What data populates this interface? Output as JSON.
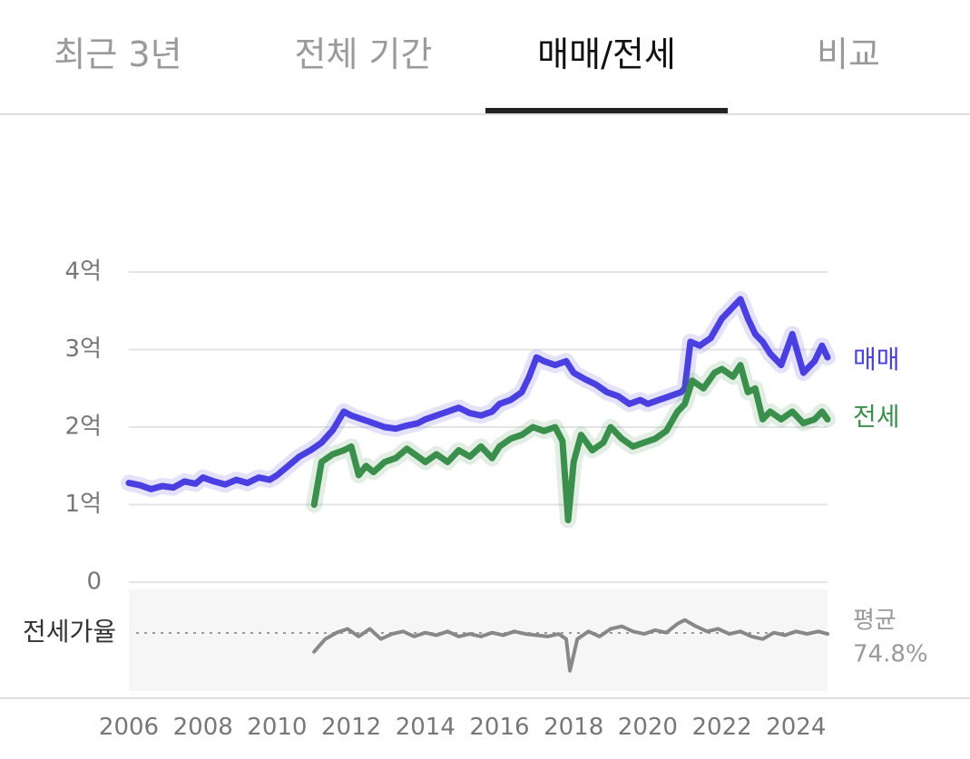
{
  "tabs": [
    {
      "label": "최근 3년",
      "active": false
    },
    {
      "label": "전체 기간",
      "active": false
    },
    {
      "label": "매매/전세",
      "active": true
    },
    {
      "label": "비교",
      "active": false
    }
  ],
  "colors": {
    "sale": "#4a3fe0",
    "jeonse": "#3b8f4c",
    "ratio": "#888888",
    "grid": "#e4e4e4",
    "axis_text": "#777777",
    "ratio_band": "#f6f6f6"
  },
  "chart_data": {
    "type": "line",
    "title": "",
    "xlabel": "",
    "ylabel": "",
    "y_unit": "억",
    "ylim": [
      0,
      4
    ],
    "y_ticks": [
      {
        "value": 0,
        "label": "0"
      },
      {
        "value": 1,
        "label": "1억"
      },
      {
        "value": 2,
        "label": "2억"
      },
      {
        "value": 3,
        "label": "3억"
      },
      {
        "value": 4,
        "label": "4억"
      }
    ],
    "x_range": [
      2006,
      2024.85
    ],
    "x_ticks": [
      2006,
      2008,
      2010,
      2012,
      2014,
      2016,
      2018,
      2020,
      2022,
      2024
    ],
    "grid": true,
    "legend": "right, inline labels at line ends",
    "series": [
      {
        "name": "매매",
        "points": [
          [
            2006,
            1.28
          ],
          [
            2006.3,
            1.25
          ],
          [
            2006.6,
            1.2
          ],
          [
            2006.9,
            1.24
          ],
          [
            2007.2,
            1.22
          ],
          [
            2007.5,
            1.3
          ],
          [
            2007.8,
            1.27
          ],
          [
            2008,
            1.35
          ],
          [
            2008.3,
            1.3
          ],
          [
            2008.6,
            1.26
          ],
          [
            2008.9,
            1.32
          ],
          [
            2009.2,
            1.28
          ],
          [
            2009.5,
            1.35
          ],
          [
            2009.8,
            1.32
          ],
          [
            2010,
            1.38
          ],
          [
            2010.3,
            1.5
          ],
          [
            2010.6,
            1.62
          ],
          [
            2010.9,
            1.7
          ],
          [
            2011.2,
            1.8
          ],
          [
            2011.5,
            1.96
          ],
          [
            2011.8,
            2.2
          ],
          [
            2012,
            2.15
          ],
          [
            2012.3,
            2.1
          ],
          [
            2012.6,
            2.05
          ],
          [
            2012.9,
            2.0
          ],
          [
            2013.2,
            1.98
          ],
          [
            2013.5,
            2.02
          ],
          [
            2013.8,
            2.05
          ],
          [
            2014,
            2.1
          ],
          [
            2014.3,
            2.15
          ],
          [
            2014.6,
            2.2
          ],
          [
            2014.9,
            2.25
          ],
          [
            2015.2,
            2.18
          ],
          [
            2015.5,
            2.15
          ],
          [
            2015.8,
            2.2
          ],
          [
            2016,
            2.3
          ],
          [
            2016.3,
            2.35
          ],
          [
            2016.6,
            2.45
          ],
          [
            2016.8,
            2.65
          ],
          [
            2017,
            2.9
          ],
          [
            2017.2,
            2.85
          ],
          [
            2017.5,
            2.8
          ],
          [
            2017.8,
            2.85
          ],
          [
            2018,
            2.7
          ],
          [
            2018.3,
            2.62
          ],
          [
            2018.6,
            2.55
          ],
          [
            2018.9,
            2.45
          ],
          [
            2019.2,
            2.4
          ],
          [
            2019.5,
            2.3
          ],
          [
            2019.8,
            2.35
          ],
          [
            2020,
            2.3
          ],
          [
            2020.3,
            2.35
          ],
          [
            2020.6,
            2.4
          ],
          [
            2020.9,
            2.45
          ],
          [
            2021,
            2.5
          ],
          [
            2021.15,
            3.1
          ],
          [
            2021.4,
            3.05
          ],
          [
            2021.7,
            3.15
          ],
          [
            2022,
            3.4
          ],
          [
            2022.3,
            3.55
          ],
          [
            2022.5,
            3.65
          ],
          [
            2022.7,
            3.4
          ],
          [
            2022.9,
            3.2
          ],
          [
            2023.1,
            3.1
          ],
          [
            2023.3,
            2.95
          ],
          [
            2023.6,
            2.8
          ],
          [
            2023.9,
            3.2
          ],
          [
            2024.2,
            2.7
          ],
          [
            2024.5,
            2.85
          ],
          [
            2024.7,
            3.05
          ],
          [
            2024.85,
            2.9
          ]
        ]
      },
      {
        "name": "전세",
        "points": [
          [
            2011,
            1.0
          ],
          [
            2011.2,
            1.55
          ],
          [
            2011.5,
            1.65
          ],
          [
            2011.8,
            1.7
          ],
          [
            2012,
            1.75
          ],
          [
            2012.2,
            1.38
          ],
          [
            2012.4,
            1.5
          ],
          [
            2012.6,
            1.42
          ],
          [
            2012.9,
            1.55
          ],
          [
            2013.2,
            1.6
          ],
          [
            2013.5,
            1.72
          ],
          [
            2013.8,
            1.62
          ],
          [
            2014,
            1.55
          ],
          [
            2014.3,
            1.65
          ],
          [
            2014.6,
            1.55
          ],
          [
            2014.9,
            1.7
          ],
          [
            2015.2,
            1.62
          ],
          [
            2015.5,
            1.75
          ],
          [
            2015.8,
            1.6
          ],
          [
            2016,
            1.75
          ],
          [
            2016.3,
            1.85
          ],
          [
            2016.6,
            1.9
          ],
          [
            2016.9,
            2.0
          ],
          [
            2017.2,
            1.95
          ],
          [
            2017.5,
            2.0
          ],
          [
            2017.7,
            1.82
          ],
          [
            2017.85,
            0.8
          ],
          [
            2018,
            1.55
          ],
          [
            2018.2,
            1.9
          ],
          [
            2018.5,
            1.7
          ],
          [
            2018.8,
            1.8
          ],
          [
            2019,
            2.0
          ],
          [
            2019.3,
            1.85
          ],
          [
            2019.6,
            1.75
          ],
          [
            2019.9,
            1.8
          ],
          [
            2020.2,
            1.85
          ],
          [
            2020.5,
            1.95
          ],
          [
            2020.8,
            2.2
          ],
          [
            2021,
            2.3
          ],
          [
            2021.2,
            2.6
          ],
          [
            2021.5,
            2.5
          ],
          [
            2021.8,
            2.7
          ],
          [
            2022,
            2.75
          ],
          [
            2022.3,
            2.65
          ],
          [
            2022.5,
            2.8
          ],
          [
            2022.7,
            2.45
          ],
          [
            2022.9,
            2.5
          ],
          [
            2023.1,
            2.1
          ],
          [
            2023.3,
            2.2
          ],
          [
            2023.6,
            2.1
          ],
          [
            2023.9,
            2.2
          ],
          [
            2024.2,
            2.05
          ],
          [
            2024.5,
            2.1
          ],
          [
            2024.7,
            2.2
          ],
          [
            2024.85,
            2.1
          ]
        ]
      },
      {
        "name": "전세가율",
        "unit": "%",
        "average_label": "평균",
        "average_value_text": "74.8%",
        "average": 74.8,
        "points": [
          [
            2011,
            60
          ],
          [
            2011.3,
            70
          ],
          [
            2011.6,
            75
          ],
          [
            2011.9,
            78
          ],
          [
            2012.2,
            72
          ],
          [
            2012.5,
            78
          ],
          [
            2012.8,
            70
          ],
          [
            2013.1,
            74
          ],
          [
            2013.4,
            76
          ],
          [
            2013.7,
            72
          ],
          [
            2014,
            75
          ],
          [
            2014.3,
            73
          ],
          [
            2014.6,
            76
          ],
          [
            2014.9,
            72
          ],
          [
            2015.2,
            74
          ],
          [
            2015.5,
            72
          ],
          [
            2015.8,
            75
          ],
          [
            2016.1,
            73
          ],
          [
            2016.4,
            76
          ],
          [
            2016.7,
            74
          ],
          [
            2017,
            73
          ],
          [
            2017.3,
            72
          ],
          [
            2017.6,
            74
          ],
          [
            2017.8,
            70
          ],
          [
            2017.9,
            45
          ],
          [
            2018.1,
            70
          ],
          [
            2018.4,
            76
          ],
          [
            2018.7,
            72
          ],
          [
            2019,
            78
          ],
          [
            2019.3,
            80
          ],
          [
            2019.6,
            76
          ],
          [
            2019.9,
            74
          ],
          [
            2020.2,
            77
          ],
          [
            2020.5,
            75
          ],
          [
            2020.8,
            82
          ],
          [
            2021,
            85
          ],
          [
            2021.3,
            80
          ],
          [
            2021.6,
            76
          ],
          [
            2021.9,
            78
          ],
          [
            2022.2,
            74
          ],
          [
            2022.5,
            76
          ],
          [
            2022.8,
            72
          ],
          [
            2023.1,
            70
          ],
          [
            2023.4,
            75
          ],
          [
            2023.7,
            73
          ],
          [
            2024,
            76
          ],
          [
            2024.3,
            74
          ],
          [
            2024.6,
            76
          ],
          [
            2024.85,
            74
          ]
        ]
      }
    ]
  }
}
